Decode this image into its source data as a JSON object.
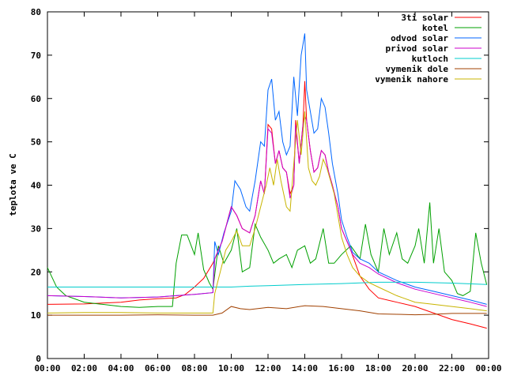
{
  "chart_data": {
    "type": "line",
    "ylabel": "teplota ve C",
    "xlabel": "",
    "xlim": [
      0,
      24
    ],
    "ylim": [
      0,
      80
    ],
    "grid": false,
    "legend_position": "top-right",
    "x_ticks": [
      "00:00",
      "02:00",
      "04:00",
      "06:00",
      "08:00",
      "10:00",
      "12:00",
      "14:00",
      "16:00",
      "18:00",
      "20:00",
      "22:00",
      "00:00"
    ],
    "y_ticks": [
      0,
      10,
      20,
      30,
      40,
      50,
      60,
      70,
      80
    ],
    "series": [
      {
        "name": "3ti solar",
        "color": "#ff0000",
        "points": [
          [
            0,
            12.5
          ],
          [
            2,
            12.6
          ],
          [
            3,
            12.8
          ],
          [
            4,
            13.0
          ],
          [
            5,
            13.5
          ],
          [
            6,
            13.8
          ],
          [
            7,
            14.0
          ],
          [
            7.5,
            14.8
          ],
          [
            8,
            16.5
          ],
          [
            8.5,
            18.5
          ],
          [
            9,
            22
          ],
          [
            9.5,
            27
          ],
          [
            10,
            35
          ],
          [
            10.3,
            33
          ],
          [
            10.6,
            30
          ],
          [
            11,
            29
          ],
          [
            11.3,
            33
          ],
          [
            11.6,
            41
          ],
          [
            11.8,
            38
          ],
          [
            12,
            54
          ],
          [
            12.2,
            53
          ],
          [
            12.4,
            45
          ],
          [
            12.6,
            48
          ],
          [
            12.8,
            44
          ],
          [
            13,
            43
          ],
          [
            13.2,
            38
          ],
          [
            13.4,
            40
          ],
          [
            13.5,
            55
          ],
          [
            13.7,
            45
          ],
          [
            13.9,
            54
          ],
          [
            14,
            64
          ],
          [
            14.1,
            55
          ],
          [
            14.3,
            48
          ],
          [
            14.5,
            43
          ],
          [
            14.7,
            44
          ],
          [
            14.9,
            48
          ],
          [
            15.1,
            47
          ],
          [
            15.3,
            43
          ],
          [
            15.5,
            40
          ],
          [
            15.8,
            35
          ],
          [
            16,
            30
          ],
          [
            16.3,
            27
          ],
          [
            16.5,
            25
          ],
          [
            17,
            19
          ],
          [
            17.5,
            16
          ],
          [
            18,
            14
          ],
          [
            19,
            13
          ],
          [
            20,
            12
          ],
          [
            21,
            10.5
          ],
          [
            22,
            9
          ],
          [
            23,
            8
          ],
          [
            23.9,
            7
          ]
        ]
      },
      {
        "name": "kotel",
        "color": "#00a000",
        "points": [
          [
            0,
            21
          ],
          [
            0.5,
            16.5
          ],
          [
            1,
            14.5
          ],
          [
            2,
            13
          ],
          [
            3,
            12.5
          ],
          [
            4,
            12
          ],
          [
            5,
            11.8
          ],
          [
            6,
            12
          ],
          [
            6.8,
            12
          ],
          [
            7,
            22
          ],
          [
            7.3,
            28.5
          ],
          [
            7.6,
            28.5
          ],
          [
            8,
            24
          ],
          [
            8.2,
            29
          ],
          [
            8.5,
            20.5
          ],
          [
            8.8,
            17.5
          ],
          [
            9,
            16
          ],
          [
            9.3,
            26
          ],
          [
            9.6,
            22
          ],
          [
            10,
            25
          ],
          [
            10.3,
            30
          ],
          [
            10.6,
            20
          ],
          [
            11,
            21
          ],
          [
            11.3,
            31
          ],
          [
            11.6,
            28
          ],
          [
            12,
            25
          ],
          [
            12.3,
            22
          ],
          [
            12.6,
            23
          ],
          [
            13,
            24
          ],
          [
            13.3,
            21
          ],
          [
            13.6,
            25
          ],
          [
            14,
            26
          ],
          [
            14.3,
            22
          ],
          [
            14.6,
            23
          ],
          [
            15,
            30
          ],
          [
            15.3,
            22
          ],
          [
            15.6,
            22
          ],
          [
            16,
            24
          ],
          [
            16.5,
            26
          ],
          [
            17,
            23
          ],
          [
            17.3,
            31
          ],
          [
            17.6,
            24
          ],
          [
            18,
            20
          ],
          [
            18.3,
            30
          ],
          [
            18.6,
            24
          ],
          [
            19,
            29
          ],
          [
            19.3,
            23
          ],
          [
            19.6,
            22
          ],
          [
            20,
            26
          ],
          [
            20.2,
            30
          ],
          [
            20.5,
            22
          ],
          [
            20.8,
            36
          ],
          [
            21,
            22
          ],
          [
            21.3,
            30
          ],
          [
            21.6,
            20
          ],
          [
            22,
            18
          ],
          [
            22.3,
            15
          ],
          [
            22.6,
            14.5
          ],
          [
            23,
            15.5
          ],
          [
            23.3,
            29
          ],
          [
            23.6,
            22
          ],
          [
            23.9,
            17
          ]
        ]
      },
      {
        "name": "odvod solar",
        "color": "#0066ff",
        "points": [
          [
            0,
            14.5
          ],
          [
            2,
            14.3
          ],
          [
            4,
            14.0
          ],
          [
            6,
            14.2
          ],
          [
            7,
            14.5
          ],
          [
            8,
            14.8
          ],
          [
            9,
            15.2
          ],
          [
            9.1,
            27
          ],
          [
            9.3,
            24
          ],
          [
            9.6,
            29
          ],
          [
            10,
            34
          ],
          [
            10.2,
            41
          ],
          [
            10.5,
            39
          ],
          [
            10.8,
            35
          ],
          [
            11,
            34
          ],
          [
            11.3,
            41
          ],
          [
            11.6,
            50
          ],
          [
            11.8,
            49
          ],
          [
            12,
            62
          ],
          [
            12.2,
            64.5
          ],
          [
            12.4,
            55
          ],
          [
            12.6,
            57
          ],
          [
            12.8,
            50
          ],
          [
            13,
            47
          ],
          [
            13.2,
            49
          ],
          [
            13.4,
            65
          ],
          [
            13.6,
            56
          ],
          [
            13.8,
            70
          ],
          [
            14,
            75
          ],
          [
            14.1,
            62
          ],
          [
            14.3,
            57
          ],
          [
            14.5,
            52
          ],
          [
            14.7,
            53
          ],
          [
            14.9,
            60
          ],
          [
            15.1,
            58
          ],
          [
            15.3,
            52
          ],
          [
            15.5,
            45
          ],
          [
            15.8,
            38
          ],
          [
            16,
            32
          ],
          [
            16.3,
            28
          ],
          [
            16.6,
            24.5
          ],
          [
            17,
            23
          ],
          [
            17.5,
            22
          ],
          [
            18,
            20
          ],
          [
            19,
            18
          ],
          [
            20,
            16.5
          ],
          [
            21,
            15.5
          ],
          [
            22,
            14.5
          ],
          [
            23,
            13.5
          ],
          [
            23.9,
            12.5
          ]
        ]
      },
      {
        "name": "privod solar",
        "color": "#cc00cc",
        "points": [
          [
            0,
            14.5
          ],
          [
            2,
            14.3
          ],
          [
            4,
            14.0
          ],
          [
            6,
            14.2
          ],
          [
            7,
            14.5
          ],
          [
            8,
            14.8
          ],
          [
            9,
            15.2
          ],
          [
            9.1,
            23
          ],
          [
            9.5,
            27
          ],
          [
            10,
            35
          ],
          [
            10.3,
            33
          ],
          [
            10.6,
            30
          ],
          [
            11,
            29
          ],
          [
            11.3,
            33
          ],
          [
            11.6,
            41
          ],
          [
            11.8,
            38
          ],
          [
            12,
            53
          ],
          [
            12.2,
            52
          ],
          [
            12.4,
            45
          ],
          [
            12.6,
            48
          ],
          [
            12.8,
            44
          ],
          [
            13,
            43
          ],
          [
            13.2,
            37
          ],
          [
            13.4,
            40
          ],
          [
            13.5,
            54
          ],
          [
            13.7,
            45
          ],
          [
            13.9,
            54
          ],
          [
            14,
            56
          ],
          [
            14.1,
            55
          ],
          [
            14.3,
            48
          ],
          [
            14.5,
            43
          ],
          [
            14.7,
            44
          ],
          [
            14.9,
            48
          ],
          [
            15.1,
            47
          ],
          [
            15.3,
            43
          ],
          [
            15.5,
            40
          ],
          [
            15.8,
            35
          ],
          [
            16,
            30
          ],
          [
            16.3,
            27
          ],
          [
            16.6,
            24
          ],
          [
            17,
            22
          ],
          [
            17.5,
            21
          ],
          [
            18,
            19.5
          ],
          [
            19,
            17.5
          ],
          [
            20,
            16
          ],
          [
            21,
            15
          ],
          [
            22,
            14
          ],
          [
            23,
            13
          ],
          [
            23.9,
            12
          ]
        ]
      },
      {
        "name": "kutloch",
        "color": "#00cccc",
        "points": [
          [
            0,
            16.5
          ],
          [
            2,
            16.5
          ],
          [
            4,
            16.5
          ],
          [
            6,
            16.5
          ],
          [
            8,
            16.5
          ],
          [
            10,
            16.5
          ],
          [
            11,
            16.7
          ],
          [
            12,
            16.8
          ],
          [
            14,
            17.1
          ],
          [
            16,
            17.3
          ],
          [
            18,
            17.6
          ],
          [
            20,
            17.6
          ],
          [
            22,
            17.4
          ],
          [
            23.9,
            17.1
          ]
        ]
      },
      {
        "name": "vymenik dole",
        "color": "#a04000",
        "points": [
          [
            0,
            10
          ],
          [
            2,
            10
          ],
          [
            4,
            10
          ],
          [
            6,
            10.1
          ],
          [
            8,
            10
          ],
          [
            9,
            10
          ],
          [
            9.5,
            10.5
          ],
          [
            10,
            12
          ],
          [
            10.5,
            11.5
          ],
          [
            11,
            11.3
          ],
          [
            12,
            11.8
          ],
          [
            13,
            11.5
          ],
          [
            14,
            12.2
          ],
          [
            15,
            12
          ],
          [
            16,
            11.5
          ],
          [
            17,
            11
          ],
          [
            18,
            10.3
          ],
          [
            19,
            10.2
          ],
          [
            20,
            10.1
          ],
          [
            21,
            10.2
          ],
          [
            22,
            10.4
          ],
          [
            23,
            10.4
          ],
          [
            23.9,
            10.4
          ]
        ]
      },
      {
        "name": "vymenik nahore",
        "color": "#c8b400",
        "points": [
          [
            0,
            10.5
          ],
          [
            2,
            10.6
          ],
          [
            4,
            10.6
          ],
          [
            6,
            10.5
          ],
          [
            8,
            10.5
          ],
          [
            9,
            10.5
          ],
          [
            9.1,
            15
          ],
          [
            9.4,
            20
          ],
          [
            9.7,
            25
          ],
          [
            10,
            27
          ],
          [
            10.3,
            29.5
          ],
          [
            10.6,
            26
          ],
          [
            11,
            26
          ],
          [
            11.3,
            30
          ],
          [
            11.6,
            35
          ],
          [
            11.9,
            40
          ],
          [
            12.1,
            44
          ],
          [
            12.3,
            40
          ],
          [
            12.5,
            46
          ],
          [
            12.7,
            41
          ],
          [
            13,
            35
          ],
          [
            13.2,
            34
          ],
          [
            13.4,
            45
          ],
          [
            13.6,
            55
          ],
          [
            13.8,
            47
          ],
          [
            14,
            57
          ],
          [
            14.2,
            44
          ],
          [
            14.4,
            41
          ],
          [
            14.6,
            40
          ],
          [
            14.8,
            42
          ],
          [
            15,
            46
          ],
          [
            15.2,
            44
          ],
          [
            15.4,
            41
          ],
          [
            15.6,
            38
          ],
          [
            15.8,
            33
          ],
          [
            16,
            28
          ],
          [
            16.3,
            24
          ],
          [
            16.6,
            21
          ],
          [
            17,
            19
          ],
          [
            17.5,
            17.5
          ],
          [
            18,
            16.5
          ],
          [
            19,
            14.5
          ],
          [
            20,
            13
          ],
          [
            21,
            12.5
          ],
          [
            22,
            12
          ],
          [
            23,
            11.5
          ],
          [
            23.9,
            11
          ]
        ]
      }
    ]
  }
}
